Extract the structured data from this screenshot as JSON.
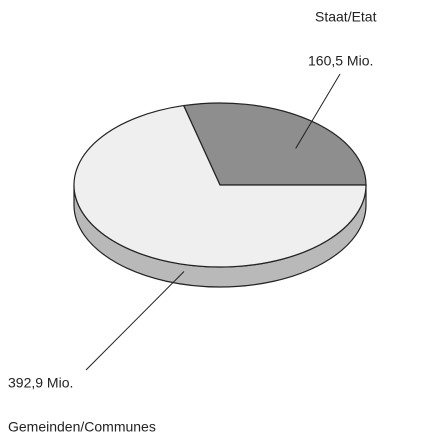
{
  "chart_data": {
    "type": "pie",
    "categories": [
      "Staat/Etat",
      "Gemeinden/Communes"
    ],
    "values": [
      160.5,
      392.9
    ],
    "value_labels": [
      "160,5 Mio.",
      "392,9 Mio."
    ],
    "colors": [
      "#8e8e8e",
      "#efefef"
    ]
  }
}
